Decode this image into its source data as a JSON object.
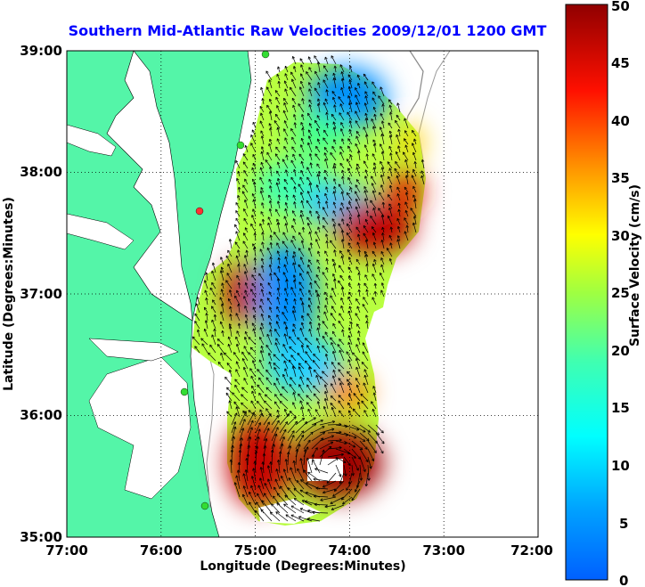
{
  "title": "Southern Mid-Atlantic Raw Velocities 2009/12/01 1200 GMT",
  "x_axis": {
    "label": "Longitude (Degrees:Minutes)",
    "ticks": [
      "77:00",
      "76:00",
      "75:00",
      "74:00",
      "73:00",
      "72:00"
    ]
  },
  "y_axis": {
    "label": "Latitude (Degrees:Minutes)",
    "ticks": [
      "39:00",
      "38:00",
      "37:00",
      "36:00",
      "35:00"
    ]
  },
  "colorbar": {
    "label": "Surface Velocity (cm/s)",
    "ticks": [
      "0",
      "5",
      "10",
      "15",
      "20",
      "25",
      "30",
      "35",
      "40",
      "45",
      "50"
    ],
    "range": [
      0,
      50
    ],
    "colormap": "jet"
  },
  "colors": {
    "land": "#54f5a8",
    "water": "#ffffff",
    "title": "#0000ff",
    "station": "#33dd33",
    "station_alt": "#ff3333",
    "depth_contour": "#999999"
  },
  "chart_data": {
    "type": "heatmap",
    "lon_range": [
      -77,
      -72
    ],
    "lat_range": [
      35,
      39
    ],
    "value_range": [
      0,
      50
    ],
    "grid_on": true,
    "legend": "right colorbar",
    "regions": [
      {
        "lon": -74.3,
        "lat": 38.6,
        "speed": 8
      },
      {
        "lon": -74.8,
        "lat": 38.1,
        "speed": 16
      },
      {
        "lon": -74.4,
        "lat": 37.9,
        "speed": 14
      },
      {
        "lon": -74.0,
        "lat": 37.6,
        "speed": 45
      },
      {
        "lon": -73.7,
        "lat": 37.8,
        "speed": 40
      },
      {
        "lon": -75.0,
        "lat": 37.0,
        "speed": 8
      },
      {
        "lon": -74.8,
        "lat": 36.6,
        "speed": 10
      },
      {
        "lon": -75.3,
        "lat": 36.9,
        "speed": 48
      },
      {
        "lon": -74.5,
        "lat": 36.3,
        "speed": 22
      },
      {
        "lon": -74.2,
        "lat": 35.7,
        "speed": 48
      },
      {
        "lon": -74.9,
        "lat": 35.6,
        "speed": 40
      }
    ]
  }
}
